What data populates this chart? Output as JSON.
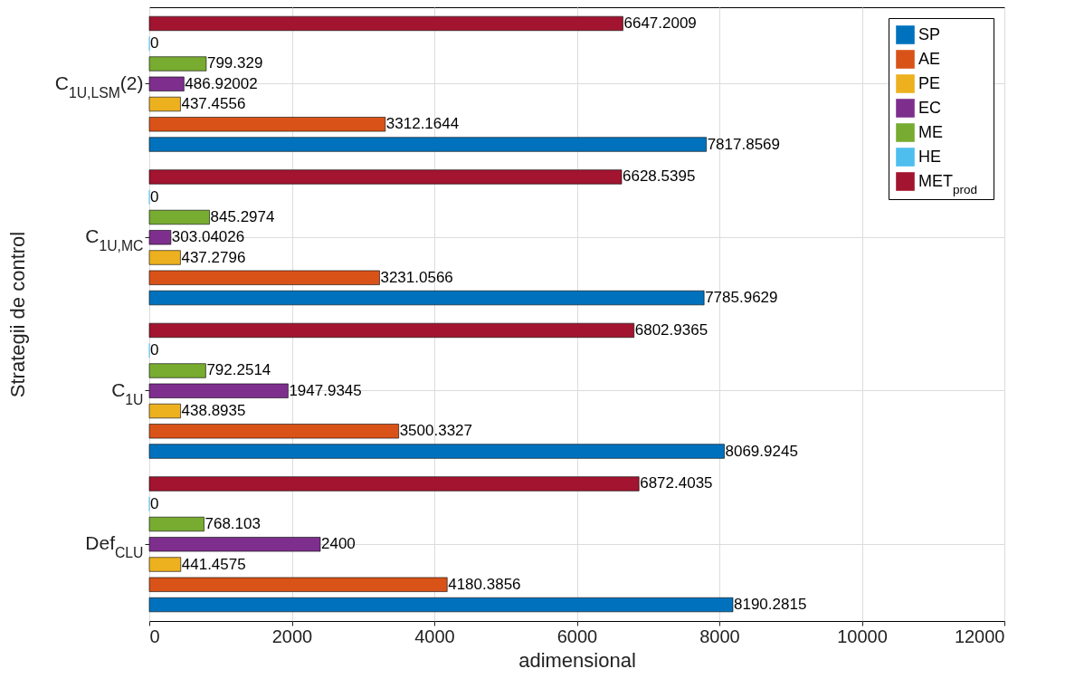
{
  "chart_data": {
    "type": "bar",
    "orientation": "horizontal",
    "xlabel": "adimensional",
    "ylabel": "Strategii de control",
    "categories": [
      "C$_{1U,LSM}$(2)",
      "C$_{1U,MC}$",
      "C$_{1U}$",
      "Def$_{CLU}$"
    ],
    "series": [
      {
        "name": "SP",
        "color": "#0072bd",
        "values": [
          7817.8569,
          7785.9629,
          8069.9245,
          8190.2815
        ]
      },
      {
        "name": "AE",
        "color": "#d95319",
        "values": [
          3312.1644,
          3231.0566,
          3500.3327,
          4180.3856
        ]
      },
      {
        "name": "PE",
        "color": "#edb120",
        "values": [
          437.4556,
          437.2796,
          438.8935,
          441.4575
        ]
      },
      {
        "name": "EC",
        "color": "#7e2f8e",
        "values": [
          486.92002,
          303.04026,
          1947.9345,
          2400
        ]
      },
      {
        "name": "ME",
        "color": "#77ac30",
        "values": [
          799.329,
          845.2974,
          792.2514,
          768.103
        ]
      },
      {
        "name": "HE",
        "color": "#4dbeee",
        "values": [
          0,
          0,
          0,
          0
        ]
      },
      {
        "name": "MET$_{prod}$",
        "color": "#a2142f",
        "values": [
          6647.2009,
          6628.5395,
          6802.9365,
          6872.4035
        ]
      }
    ],
    "xlim": [
      0,
      12000
    ],
    "xticks": [
      0,
      2000,
      4000,
      6000,
      8000,
      10000,
      12000
    ],
    "grid": true,
    "legend": "top right",
    "data_labels": true
  }
}
